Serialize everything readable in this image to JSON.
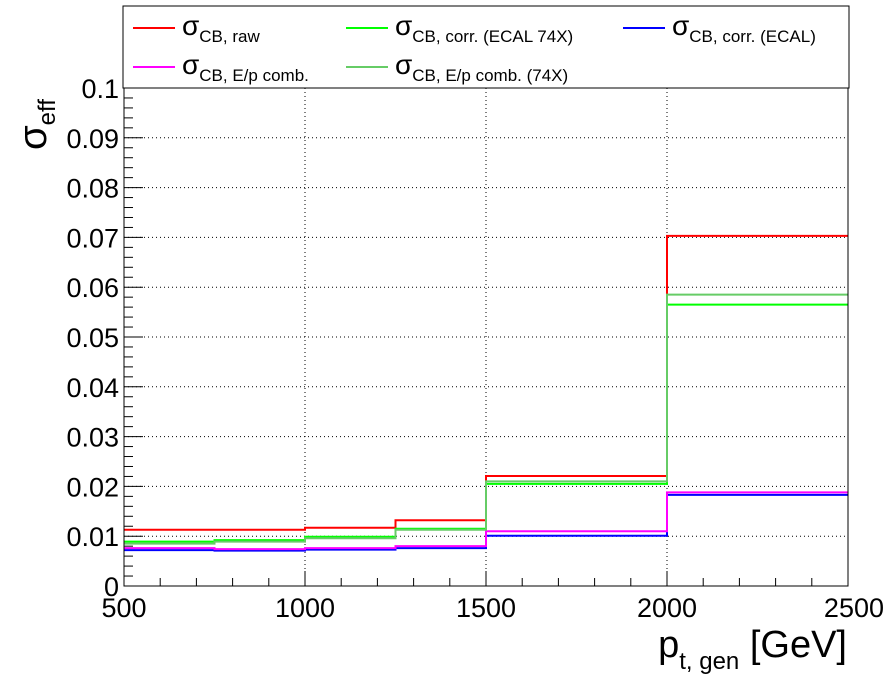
{
  "chart_data": {
    "type": "line",
    "step": true,
    "xlim": [
      500,
      2500
    ],
    "ylim": [
      0,
      0.1
    ],
    "grid": true,
    "legend_position": "top",
    "x_ticks": [
      "500",
      "1000",
      "1500",
      "2000",
      "2500"
    ],
    "y_ticks": [
      "0",
      "0.01",
      "0.02",
      "0.03",
      "0.04",
      "0.05",
      "0.06",
      "0.07",
      "0.08",
      "0.09",
      "0.1"
    ],
    "ylabel": {
      "symbol": "σ",
      "sub": "eff"
    },
    "xlabel": {
      "main": "p",
      "sub": "t, gen",
      "unit": " [GeV]"
    },
    "bin_edges": [
      500,
      750,
      1000,
      1250,
      1500,
      2000,
      2500
    ],
    "series": [
      {
        "name": "σ_CB, raw",
        "label_main": "σ",
        "label_sub": "CB, raw",
        "color": "#ff0000",
        "values": [
          0.0113,
          0.0113,
          0.0117,
          0.0132,
          0.0221,
          0.0703
        ]
      },
      {
        "name": "σ_CB, corr. (ECAL 74X)",
        "label_main": "σ",
        "label_sub": "CB, corr. (ECAL 74X)",
        "color": "#00ff00",
        "values": [
          0.0089,
          0.0092,
          0.0099,
          0.0115,
          0.0205,
          0.0565
        ]
      },
      {
        "name": "σ_CB, corr. (ECAL)",
        "label_main": "σ",
        "label_sub": "CB, corr. (ECAL)",
        "color": "#0000ff",
        "values": [
          0.0072,
          0.0071,
          0.0073,
          0.0076,
          0.0101,
          0.0183
        ]
      },
      {
        "name": "σ_CB, E/p comb.",
        "label_main": "σ",
        "label_sub": "CB, E/p comb.",
        "color": "#ff00ff",
        "values": [
          0.0076,
          0.0074,
          0.0076,
          0.008,
          0.011,
          0.0188
        ]
      },
      {
        "name": "σ_CB, E/p comb. (74X)",
        "label_main": "σ",
        "label_sub": "CB, E/p comb. (74X)",
        "color": "#66cc66",
        "values": [
          0.0085,
          0.0089,
          0.0096,
          0.0113,
          0.021,
          0.0585
        ]
      }
    ]
  }
}
